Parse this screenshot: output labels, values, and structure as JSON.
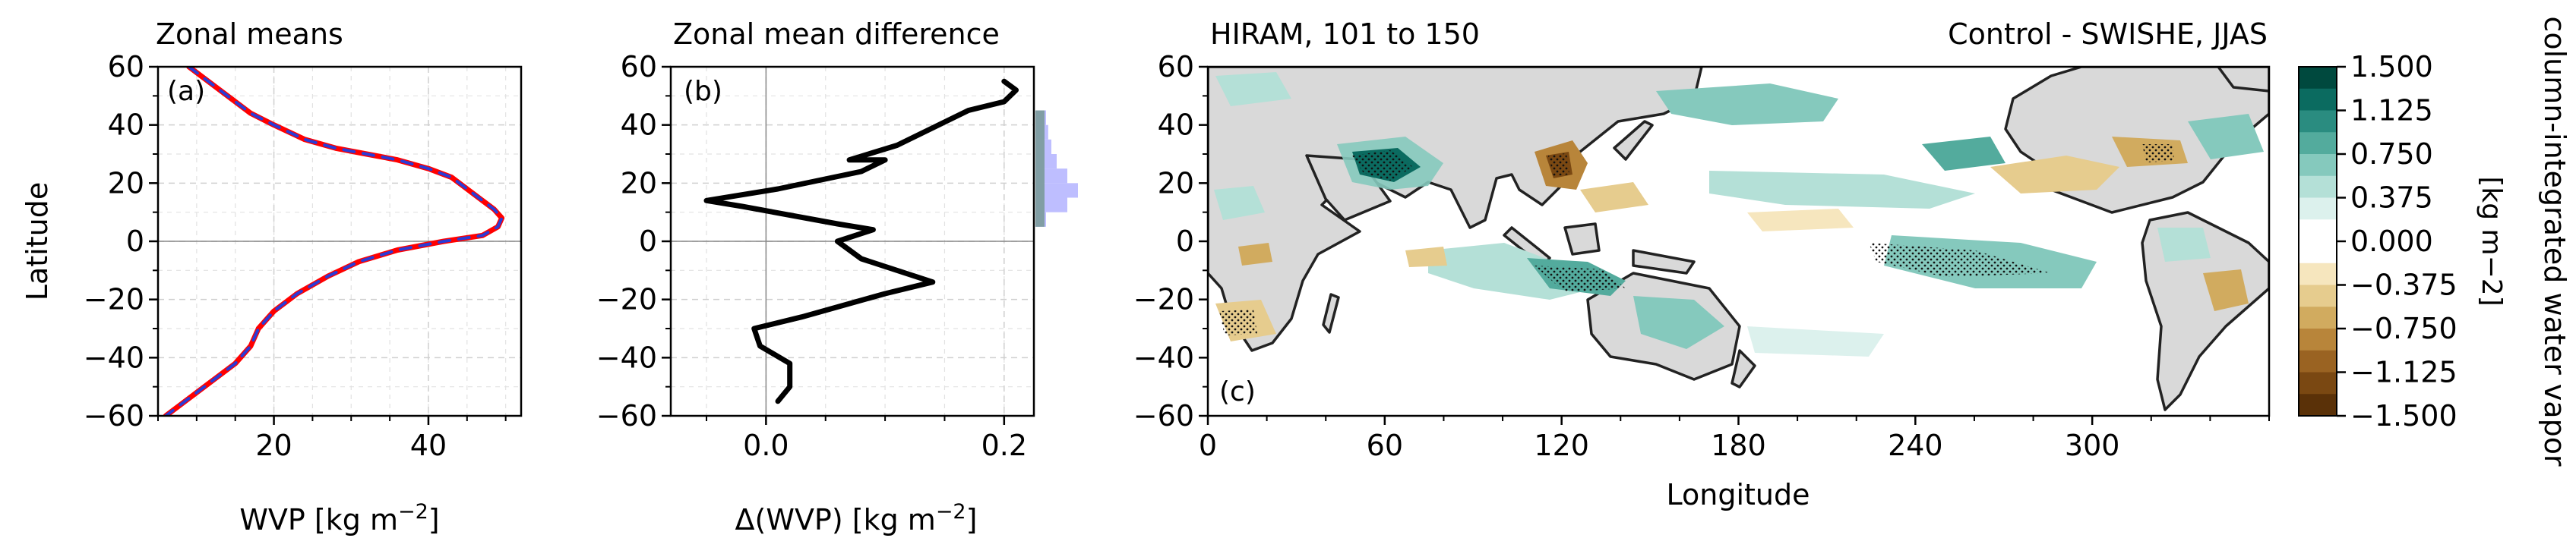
{
  "panel_a": {
    "title": "Zonal means",
    "letter": "(a)",
    "xlabel": "WVP [kg m",
    "xlabel_sup": "−2",
    "xlabel_end": "]",
    "ylabel": "Latitude"
  },
  "panel_b": {
    "title": "Zonal mean difference",
    "letter": "(b)",
    "xlabel": "Δ(WVP) [kg m",
    "xlabel_sup": "−2",
    "xlabel_end": "]"
  },
  "panel_c": {
    "title_left": "HIRAM, 101 to 150",
    "title_right": "Control - SWISHE, JJAS",
    "letter": "(c)",
    "xlabel": "Longitude"
  },
  "colorbar": {
    "label": "column-integrated water vapor",
    "units": "[kg m−2]",
    "ticks": [
      "1.500",
      "1.125",
      "0.750",
      "0.375",
      "0.000",
      "−0.375",
      "−0.750",
      "−1.125",
      "−1.500"
    ],
    "colors": [
      "#00493e",
      "#0b6b60",
      "#2a8c80",
      "#53ab9d",
      "#85c9bd",
      "#b4e0d7",
      "#dcf1ed",
      "#ffffff",
      "#ffffff",
      "#f6e6be",
      "#e6cc8e",
      "#d1ab5f",
      "#b8853a",
      "#9a6322",
      "#7a4812",
      "#5a3108"
    ]
  },
  "chart_data": [
    {
      "type": "line",
      "panel": "a",
      "title": "Zonal means",
      "xlabel": "WVP [kg m−2]",
      "ylabel": "Latitude",
      "xlim": [
        5,
        52
      ],
      "ylim": [
        -60,
        60
      ],
      "xticks": [
        20,
        40
      ],
      "yticks": [
        60,
        40,
        20,
        0,
        -20,
        -40,
        -60
      ],
      "grid": true,
      "series": [
        {
          "color": "#ff0000",
          "dash": "solid",
          "x": [
            9,
            11,
            14,
            17,
            20,
            24,
            28,
            32,
            36,
            40,
            43,
            45,
            47,
            48.5,
            49.5,
            49,
            47,
            42,
            36,
            31,
            27,
            23,
            20,
            18,
            17,
            15,
            12,
            9,
            6
          ],
          "y": [
            60,
            56,
            50,
            44,
            40,
            35,
            32,
            30,
            28,
            25,
            22,
            18,
            14,
            11,
            8,
            5,
            2,
            0,
            -3,
            -7,
            -12,
            -18,
            -24,
            -30,
            -36,
            -42,
            -48,
            -54,
            -60
          ]
        },
        {
          "color": "#2a3cd6",
          "dash": "dashed",
          "x": [
            9,
            11,
            14,
            17,
            20,
            24,
            28,
            32,
            36,
            40,
            43,
            45,
            47,
            48.5,
            49.5,
            49,
            47,
            42,
            36,
            31,
            27,
            23,
            20,
            18,
            17,
            15,
            12,
            9,
            6
          ],
          "y": [
            60,
            56,
            50,
            44,
            40,
            35,
            32,
            30,
            28,
            25,
            22,
            18,
            14,
            11,
            8,
            5,
            2,
            0,
            -3,
            -7,
            -12,
            -18,
            -24,
            -30,
            -36,
            -42,
            -48,
            -54,
            -60
          ]
        }
      ]
    },
    {
      "type": "line",
      "panel": "b",
      "title": "Zonal mean difference",
      "xlabel": "Δ(WVP) [kg m−2]",
      "xlim": [
        -0.08,
        0.225
      ],
      "ylim": [
        -60,
        60
      ],
      "xticks": [
        0.0,
        0.2
      ],
      "yticks": [
        60,
        40,
        20,
        0,
        -20,
        -40,
        -60
      ],
      "grid": true,
      "series": [
        {
          "color": "#000000",
          "dash": "solid",
          "x": [
            0.2,
            0.21,
            0.2,
            0.17,
            0.11,
            0.07,
            0.1,
            0.08,
            0.01,
            -0.05,
            -0.02,
            0.06,
            0.09,
            0.06,
            0.08,
            0.14,
            0.1,
            0.03,
            -0.01,
            -0.005,
            0.02,
            0.02,
            0.01
          ],
          "y": [
            55,
            52,
            48,
            45,
            33,
            28,
            28,
            24,
            18,
            14,
            12,
            6,
            4,
            0,
            -6,
            -14,
            -18,
            -26,
            -30,
            -36,
            -42,
            -50,
            -55
          ]
        }
      ],
      "histogram": {
        "orientation": "horizontal",
        "color": "#b3b3ff",
        "bins_lat": [
          [
            40,
            45
          ],
          [
            35,
            40
          ],
          [
            30,
            35
          ],
          [
            25,
            30
          ],
          [
            20,
            25
          ],
          [
            15,
            20
          ],
          [
            10,
            15
          ],
          [
            5,
            10
          ]
        ],
        "counts": [
          1,
          1.2,
          1.5,
          2,
          3,
          4,
          3,
          1
        ]
      }
    },
    {
      "type": "heatmap",
      "panel": "c",
      "title": "HIRAM, 101 to 150",
      "subtitle": "Control - SWISHE, JJAS",
      "xlabel": "Longitude",
      "xlim": [
        0,
        360
      ],
      "ylim": [
        -60,
        60
      ],
      "xticks": [
        0,
        60,
        120,
        180,
        240,
        300
      ],
      "yticks": [
        60,
        40,
        20,
        0,
        -20,
        -40,
        -60
      ],
      "colorbar_range": [
        -1.5,
        1.5
      ],
      "colorbar_label": "column-integrated water vapor",
      "colorbar_units": "[kg m−2]",
      "highlights": [
        {
          "lon": 60,
          "lat": 25,
          "value": 1.5
        },
        {
          "lon": 115,
          "lat": 28,
          "value": -1.1
        },
        {
          "lon": 90,
          "lat": -5,
          "value": 0.6
        },
        {
          "lon": 150,
          "lat": -15,
          "value": 0.8
        },
        {
          "lon": 260,
          "lat": -5,
          "value": 0.5
        },
        {
          "lon": 275,
          "lat": 25,
          "value": -0.6
        },
        {
          "lon": 305,
          "lat": -20,
          "value": -0.6
        },
        {
          "lon": 0,
          "lat": 0,
          "value": 0.3
        },
        {
          "lon": 185,
          "lat": 15,
          "value": 0.4
        },
        {
          "lon": 120,
          "lat": 12,
          "value": -0.5
        }
      ]
    }
  ]
}
